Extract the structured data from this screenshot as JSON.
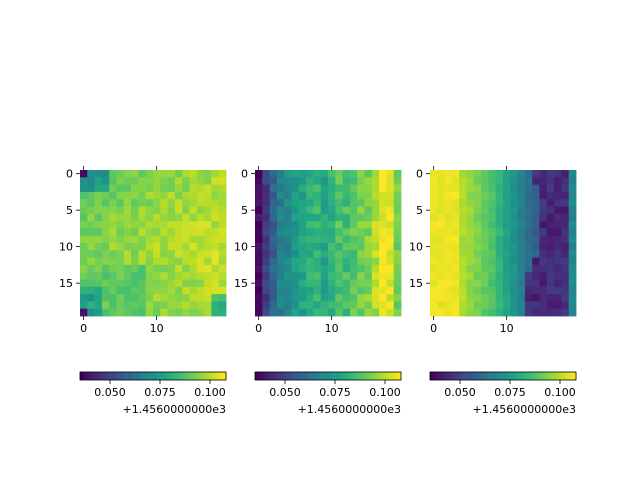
{
  "figure": {
    "background": "#ffffff"
  },
  "chart_data": [
    {
      "type": "heatmap",
      "panel": "left",
      "rows": 20,
      "cols": 20,
      "x_ticks": [
        0,
        10
      ],
      "y_ticks": [
        0,
        5,
        10,
        15
      ],
      "pattern": "mostly bright yellow-green field; dark purple cell at top-left and bottom-left corners; teal patches along left edge near top and at bottom rows",
      "z_min": 1456.035,
      "z_max": 1456.108,
      "colorbar": {
        "ticks": [
          "0.050",
          "0.075",
          "0.100"
        ],
        "tick_values": [
          0.05,
          0.075,
          0.1
        ],
        "offset_label": "+1.4560000000e3",
        "colormap": "viridis"
      }
    },
    {
      "type": "heatmap",
      "panel": "middle",
      "rows": 20,
      "cols": 20,
      "x_ticks": [
        0,
        10
      ],
      "y_ticks": [
        0,
        5,
        10,
        15
      ],
      "pattern": "vertical banding: dark purple left column, teal toward left, green-yellow center, bright yellow band near right, green right edge",
      "z_min": 1456.035,
      "z_max": 1456.108,
      "colorbar": {
        "ticks": [
          "0.050",
          "0.075",
          "0.100"
        ],
        "tick_values": [
          0.05,
          0.075,
          0.1
        ],
        "offset_label": "+1.4560000000e3",
        "colormap": "viridis"
      }
    },
    {
      "type": "heatmap",
      "panel": "right",
      "rows": 20,
      "cols": 20,
      "x_ticks": [
        0,
        10
      ],
      "y_ticks": [
        0,
        5,
        10,
        15
      ],
      "pattern": "horizontal gradient: yellow on left, green in middle, teal/blue then dark purple on right, with teal rightmost column",
      "z_min": 1456.035,
      "z_max": 1456.108,
      "colorbar": {
        "ticks": [
          "0.050",
          "0.075",
          "0.100"
        ],
        "tick_values": [
          0.05,
          0.075,
          0.1
        ],
        "offset_label": "+1.4560000000e3",
        "colormap": "viridis"
      }
    }
  ]
}
